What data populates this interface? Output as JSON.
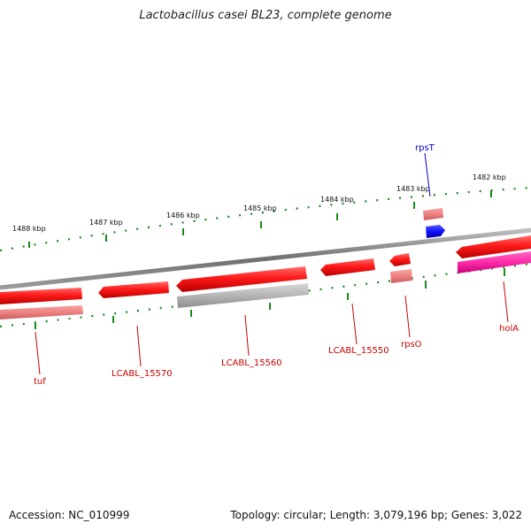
{
  "title": "Lactobacillus casei BL23, complete genome",
  "footer": {
    "accession": "Accession: NC_010999",
    "summary": "Topology: circular; Length: 3,079,196 bp; Genes: 3,022"
  },
  "ticks": [
    {
      "label": "1488 kbp"
    },
    {
      "label": "1487 kbp"
    },
    {
      "label": "1486 kbp"
    },
    {
      "label": "1485 kbp"
    },
    {
      "label": "1484 kbp"
    },
    {
      "label": "1483 kbp"
    },
    {
      "label": "1482 kbp"
    }
  ],
  "genes": [
    {
      "label": "tuf",
      "color": "#cc0000"
    },
    {
      "label": "LCABL_15570",
      "color": "#cc0000"
    },
    {
      "label": "LCABL_15560",
      "color": "#cc0000"
    },
    {
      "label": "LCABL_15550",
      "color": "#cc0000"
    },
    {
      "label": "rpsO",
      "color": "#cc0000"
    },
    {
      "label": "holA",
      "color": "#cc0000"
    },
    {
      "label": "rpsT",
      "color": "#0000cc"
    }
  ],
  "colors": {
    "cds": "#ff1a1a",
    "cds_light": "#f08080",
    "rna": "#1a1aff",
    "gray_feature": "#b5b5b5",
    "pink_feature": "#ff33aa",
    "backbone": "#777777",
    "tick": "#1a8a1a"
  }
}
